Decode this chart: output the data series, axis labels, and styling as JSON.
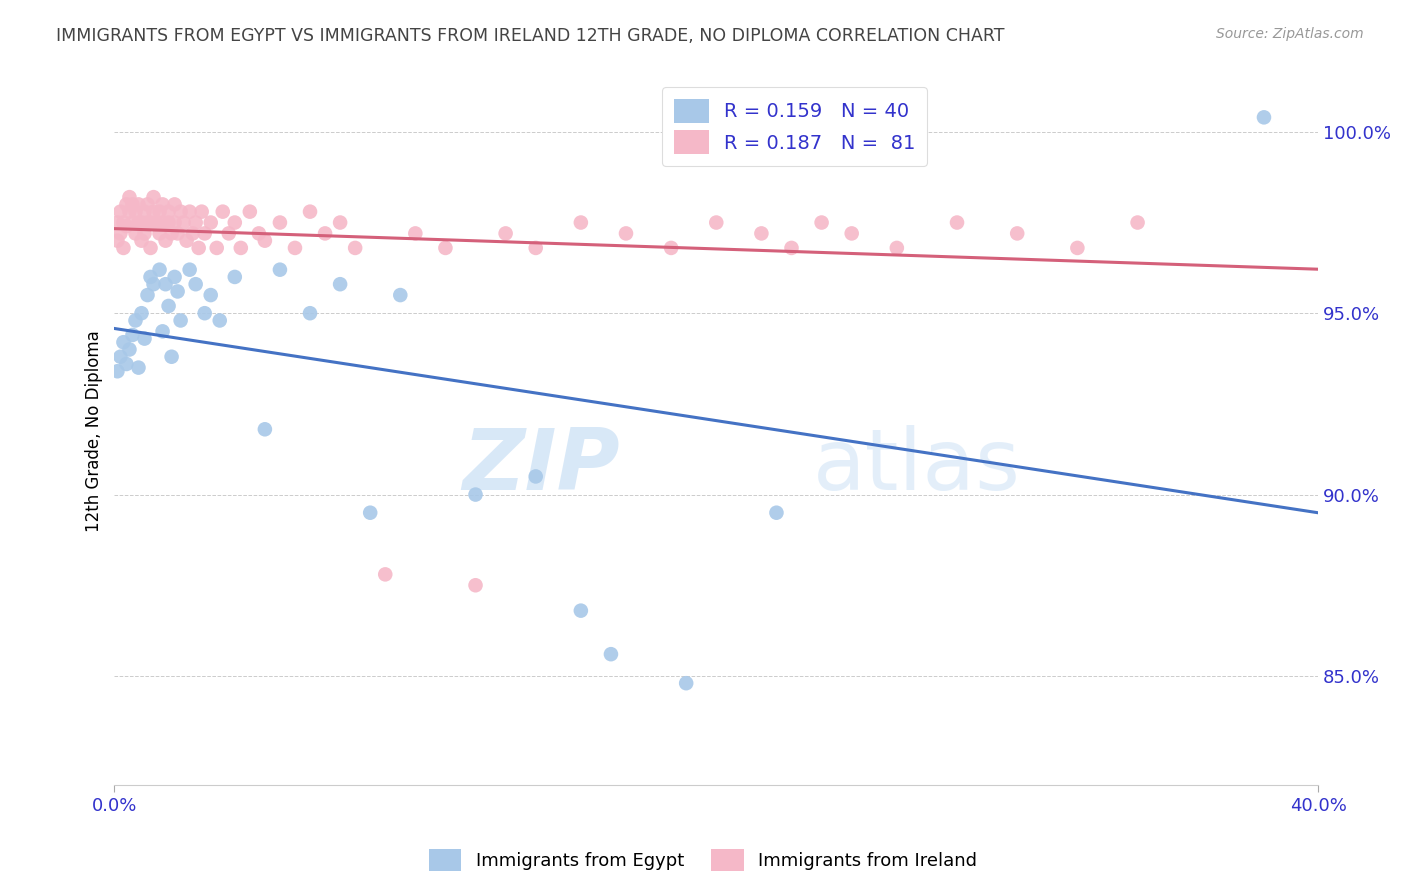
{
  "title": "IMMIGRANTS FROM EGYPT VS IMMIGRANTS FROM IRELAND 12TH GRADE, NO DIPLOMA CORRELATION CHART",
  "source": "Source: ZipAtlas.com",
  "ylabel": "12th Grade, No Diploma",
  "watermark_zip": "ZIP",
  "watermark_atlas": "atlas",
  "background_color": "#ffffff",
  "title_color": "#444444",
  "axis_color": "#3333cc",
  "egypt_scatter_color": "#a8c8e8",
  "ireland_scatter_color": "#f5b8c8",
  "egypt_line_color": "#4472c4",
  "ireland_line_color": "#d4607a",
  "legend_egypt_label": "Immigrants from Egypt",
  "legend_ireland_label": "Immigrants from Ireland",
  "legend_R_egypt": "0.159",
  "legend_N_egypt": "40",
  "legend_R_ireland": "0.187",
  "legend_N_ireland": "81",
  "xlim": [
    0.0,
    0.4
  ],
  "ylim": [
    0.82,
    1.015
  ],
  "yticks": [
    0.85,
    0.9,
    0.95,
    1.0
  ],
  "ytick_labels": [
    "85.0%",
    "90.0%",
    "95.0%",
    "100.0%"
  ],
  "egypt_x": [
    0.001,
    0.002,
    0.003,
    0.004,
    0.005,
    0.006,
    0.007,
    0.008,
    0.009,
    0.01,
    0.011,
    0.012,
    0.013,
    0.015,
    0.016,
    0.017,
    0.018,
    0.019,
    0.02,
    0.021,
    0.022,
    0.025,
    0.027,
    0.03,
    0.032,
    0.035,
    0.04,
    0.05,
    0.055,
    0.065,
    0.075,
    0.085,
    0.095,
    0.12,
    0.14,
    0.155,
    0.165,
    0.19,
    0.22,
    0.382
  ],
  "egypt_y": [
    0.934,
    0.938,
    0.942,
    0.936,
    0.94,
    0.944,
    0.948,
    0.935,
    0.95,
    0.943,
    0.955,
    0.96,
    0.958,
    0.962,
    0.945,
    0.958,
    0.952,
    0.938,
    0.96,
    0.956,
    0.948,
    0.962,
    0.958,
    0.95,
    0.955,
    0.948,
    0.96,
    0.918,
    0.962,
    0.95,
    0.958,
    0.895,
    0.955,
    0.9,
    0.905,
    0.868,
    0.856,
    0.848,
    0.895,
    1.004
  ],
  "ireland_x": [
    0.001,
    0.001,
    0.002,
    0.002,
    0.003,
    0.003,
    0.004,
    0.004,
    0.005,
    0.005,
    0.006,
    0.006,
    0.007,
    0.007,
    0.008,
    0.008,
    0.009,
    0.009,
    0.01,
    0.01,
    0.011,
    0.011,
    0.012,
    0.012,
    0.013,
    0.013,
    0.014,
    0.015,
    0.015,
    0.016,
    0.016,
    0.017,
    0.018,
    0.018,
    0.019,
    0.02,
    0.02,
    0.021,
    0.022,
    0.023,
    0.024,
    0.025,
    0.026,
    0.027,
    0.028,
    0.029,
    0.03,
    0.032,
    0.034,
    0.036,
    0.038,
    0.04,
    0.042,
    0.045,
    0.048,
    0.05,
    0.055,
    0.06,
    0.065,
    0.07,
    0.075,
    0.08,
    0.09,
    0.1,
    0.11,
    0.12,
    0.13,
    0.14,
    0.155,
    0.17,
    0.185,
    0.2,
    0.215,
    0.225,
    0.235,
    0.245,
    0.26,
    0.28,
    0.3,
    0.32,
    0.34
  ],
  "ireland_y": [
    0.97,
    0.975,
    0.972,
    0.978,
    0.968,
    0.975,
    0.98,
    0.974,
    0.978,
    0.982,
    0.975,
    0.98,
    0.972,
    0.978,
    0.975,
    0.98,
    0.97,
    0.975,
    0.978,
    0.972,
    0.975,
    0.98,
    0.968,
    0.975,
    0.978,
    0.982,
    0.975,
    0.978,
    0.972,
    0.98,
    0.975,
    0.97,
    0.975,
    0.978,
    0.972,
    0.98,
    0.975,
    0.972,
    0.978,
    0.975,
    0.97,
    0.978,
    0.972,
    0.975,
    0.968,
    0.978,
    0.972,
    0.975,
    0.968,
    0.978,
    0.972,
    0.975,
    0.968,
    0.978,
    0.972,
    0.97,
    0.975,
    0.968,
    0.978,
    0.972,
    0.975,
    0.968,
    0.878,
    0.972,
    0.968,
    0.875,
    0.972,
    0.968,
    0.975,
    0.972,
    0.968,
    0.975,
    0.972,
    0.968,
    0.975,
    0.972,
    0.968,
    0.975,
    0.972,
    0.968,
    0.975
  ]
}
